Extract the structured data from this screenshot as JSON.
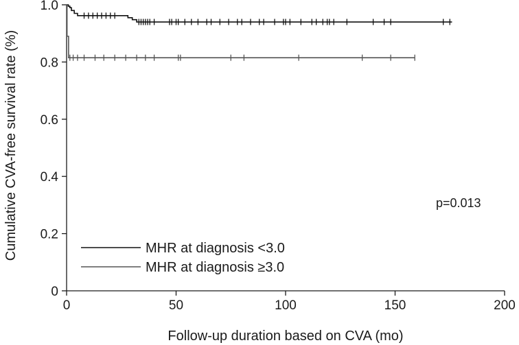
{
  "chart_data": {
    "type": "line",
    "subtype": "kaplan-meier",
    "title": "",
    "xlabel": "Follow-up duration based on CVA (mo)",
    "ylabel": "Cumulative CVA-free survival rate (%)",
    "xlim": [
      0,
      200
    ],
    "ylim": [
      0,
      1.0
    ],
    "xticks": [
      0,
      50,
      100,
      150,
      200
    ],
    "xtick_labels": [
      "0",
      "50",
      "100",
      "150",
      "200"
    ],
    "yticks": [
      0,
      0.2,
      0.4,
      0.6,
      0.8,
      1.0
    ],
    "ytick_labels": [
      "0",
      "0.2",
      "0.4",
      "0.6",
      "0.8",
      "1.0"
    ],
    "grid": false,
    "legend_position": "bottom-left",
    "annotation": "p=0.013",
    "series": [
      {
        "name": "MHR at diagnosis <3.0",
        "color": "#111111",
        "steps": [
          [
            0,
            1.0
          ],
          [
            0.8,
            0.995
          ],
          [
            1.5,
            0.99
          ],
          [
            2.2,
            0.98
          ],
          [
            3.5,
            0.97
          ],
          [
            5,
            0.962
          ],
          [
            28,
            0.955
          ],
          [
            30,
            0.948
          ],
          [
            32,
            0.94
          ],
          [
            176,
            0.94
          ]
        ],
        "censored": [
          8,
          10,
          12,
          14,
          16,
          18,
          20,
          22,
          33,
          34,
          35,
          36,
          37,
          38,
          40,
          47,
          48,
          50,
          51,
          54,
          57,
          60,
          64,
          66,
          70,
          74,
          78,
          80,
          84,
          88,
          90,
          95,
          99,
          100,
          102,
          107,
          112,
          114,
          117,
          119,
          120,
          122,
          128,
          140,
          145,
          148,
          172,
          175
        ]
      },
      {
        "name": "MHR at diagnosis ≥3.0",
        "color": "#555555",
        "steps": [
          [
            0,
            1.0
          ],
          [
            0.2,
            0.89
          ],
          [
            0.9,
            0.815
          ],
          [
            159,
            0.815
          ]
        ],
        "censored": [
          1.5,
          3,
          5,
          8,
          13,
          17,
          22,
          27,
          32,
          36,
          40,
          51,
          52,
          75,
          81,
          106,
          135,
          148,
          159
        ]
      }
    ]
  }
}
